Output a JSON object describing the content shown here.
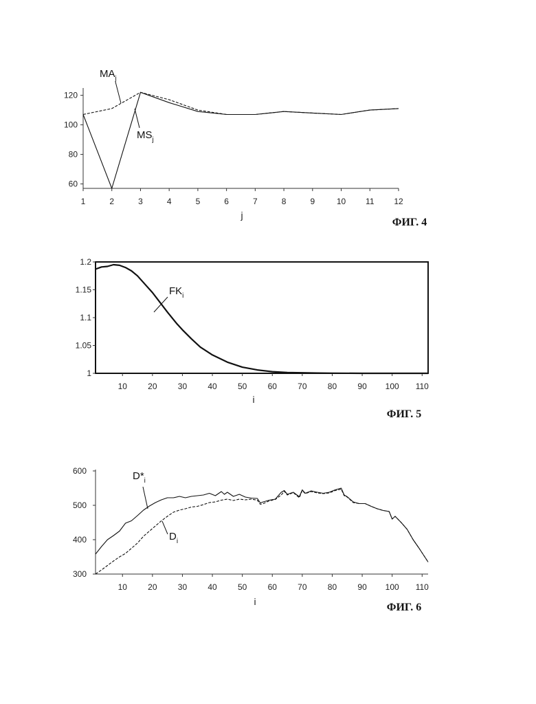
{
  "chart_data": [
    {
      "type": "line",
      "caption": "ФИГ. 4",
      "xlabel": "j",
      "ylabel": "",
      "xlim": [
        1,
        12
      ],
      "ylim": [
        57,
        124
      ],
      "xticks": [
        1,
        2,
        3,
        4,
        5,
        6,
        7,
        8,
        9,
        10,
        11,
        12
      ],
      "yticks": [
        60,
        80,
        100,
        120
      ],
      "frame": "left-bottom",
      "series": [
        {
          "name": "MA",
          "name_sub": "j",
          "style": "dashed",
          "x": [
            1,
            2,
            3,
            4,
            5,
            6,
            7,
            8,
            9,
            10,
            11,
            12
          ],
          "values": [
            107,
            111,
            122,
            117,
            110,
            107,
            107,
            109,
            108,
            107,
            110,
            111
          ]
        },
        {
          "name": "MS",
          "name_sub": "j",
          "style": "solid",
          "x": [
            1,
            2,
            3,
            4,
            5,
            6,
            7,
            8,
            9,
            10,
            11,
            12
          ],
          "values": [
            107,
            57,
            122,
            115,
            109,
            107,
            107,
            109,
            108,
            107,
            110,
            111
          ]
        }
      ]
    },
    {
      "type": "line",
      "caption": "ФИГ. 5",
      "xlabel": "i",
      "ylabel": "",
      "xlim": [
        1,
        112
      ],
      "ylim": [
        1,
        1.2
      ],
      "xticks": [
        10,
        20,
        30,
        40,
        50,
        60,
        70,
        80,
        90,
        100,
        110
      ],
      "yticks": [
        1,
        1.05,
        1.1,
        1.15,
        1.2
      ],
      "frame": "box",
      "series": [
        {
          "name": "FK",
          "name_sub": "i",
          "style": "solid-bold",
          "x": [
            1,
            3,
            5,
            7,
            9,
            11,
            13,
            15,
            18,
            20,
            22,
            25,
            28,
            30,
            33,
            36,
            40,
            45,
            50,
            55,
            60,
            65,
            70,
            75,
            80,
            90,
            100,
            112
          ],
          "values": [
            1.187,
            1.191,
            1.192,
            1.195,
            1.194,
            1.19,
            1.184,
            1.175,
            1.157,
            1.145,
            1.131,
            1.11,
            1.09,
            1.078,
            1.062,
            1.047,
            1.033,
            1.02,
            1.011,
            1.006,
            1.003,
            1.0015,
            1.001,
            1.0005,
            1.0002,
            1.0,
            1.0,
            1.0
          ]
        }
      ]
    },
    {
      "type": "line",
      "caption": "ФИГ. 6",
      "xlabel": "i",
      "ylabel": "",
      "xlim": [
        1,
        112
      ],
      "ylim": [
        300,
        600
      ],
      "xticks": [
        10,
        20,
        30,
        40,
        50,
        60,
        70,
        80,
        90,
        100,
        110
      ],
      "yticks": [
        300,
        400,
        500,
        600
      ],
      "frame": "left-bottom",
      "series": [
        {
          "name": "D*",
          "name_sub": "i",
          "style": "solid",
          "x": [
            1,
            3,
            5,
            7,
            9,
            11,
            13,
            15,
            17,
            19,
            21,
            23,
            25,
            27,
            29,
            31,
            33,
            35,
            37,
            39,
            41,
            43,
            44,
            45,
            47,
            49,
            51,
            53,
            55,
            56,
            57,
            59,
            61,
            63,
            64,
            65,
            67,
            69,
            70,
            71,
            73,
            75,
            77,
            79,
            81,
            83,
            84,
            85,
            87,
            89,
            91,
            93,
            95,
            97,
            99,
            100,
            101,
            103,
            105,
            107,
            109,
            112
          ],
          "values": [
            358,
            380,
            400,
            412,
            425,
            448,
            455,
            470,
            486,
            498,
            508,
            516,
            522,
            522,
            526,
            522,
            526,
            528,
            530,
            535,
            528,
            540,
            532,
            538,
            526,
            532,
            524,
            521,
            520,
            507,
            510,
            515,
            518,
            538,
            543,
            532,
            538,
            525,
            545,
            535,
            542,
            538,
            535,
            538,
            545,
            550,
            530,
            525,
            510,
            505,
            505,
            497,
            490,
            485,
            482,
            460,
            468,
            450,
            430,
            400,
            375,
            335
          ]
        },
        {
          "name": "D",
          "name_sub": "i",
          "style": "dashed",
          "x": [
            1,
            3,
            5,
            7,
            9,
            11,
            13,
            15,
            17,
            19,
            21,
            23,
            25,
            27,
            29,
            31,
            33,
            35,
            37,
            39,
            41,
            43,
            45,
            47,
            49,
            51,
            53,
            55,
            56,
            57,
            59,
            61,
            63,
            64,
            65,
            67,
            69,
            70,
            71,
            73,
            75,
            77,
            79,
            81,
            83,
            84,
            85,
            87,
            89,
            91,
            93,
            95,
            97,
            99,
            100,
            101,
            103,
            105,
            107,
            109,
            112
          ],
          "values": [
            300,
            312,
            325,
            338,
            350,
            360,
            375,
            390,
            410,
            425,
            440,
            455,
            468,
            480,
            486,
            490,
            495,
            497,
            502,
            508,
            510,
            515,
            518,
            514,
            518,
            516,
            518,
            515,
            503,
            505,
            513,
            517,
            530,
            541,
            530,
            537,
            522,
            543,
            534,
            540,
            536,
            534,
            536,
            543,
            547,
            528,
            524,
            508,
            505,
            505,
            497,
            490,
            485,
            482,
            460,
            468,
            450,
            430,
            400,
            375,
            335
          ]
        }
      ]
    }
  ]
}
